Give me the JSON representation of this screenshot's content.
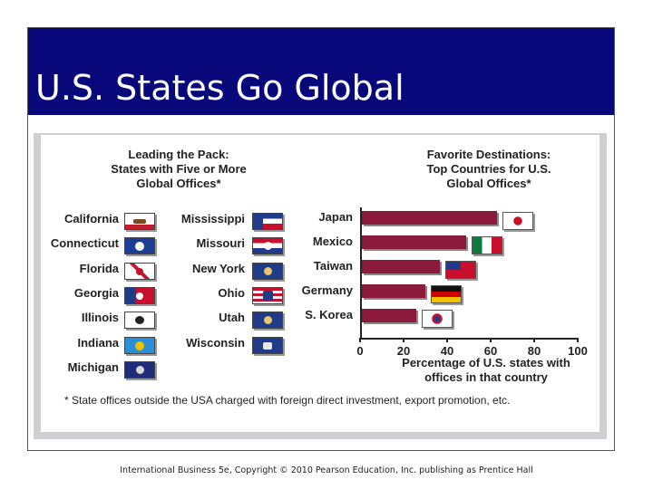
{
  "slide": {
    "title": "U.S. States Go Global",
    "copyright": "International Business 5e, Copyright © 2010 Pearson Education, Inc. publishing as Prentice Hall"
  },
  "left_panel": {
    "heading_lines": [
      "Leading the Pack:",
      "States with Five or More",
      "Global Offices*"
    ],
    "states": [
      {
        "name": "California",
        "flag": "california-flag-icon"
      },
      {
        "name": "Connecticut",
        "flag": "connecticut-flag-icon"
      },
      {
        "name": "Florida",
        "flag": "florida-flag-icon"
      },
      {
        "name": "Georgia",
        "flag": "georgia-flag-icon"
      },
      {
        "name": "Illinois",
        "flag": "illinois-flag-icon"
      },
      {
        "name": "Indiana",
        "flag": "indiana-flag-icon"
      },
      {
        "name": "Michigan",
        "flag": "michigan-flag-icon"
      },
      {
        "name": "Mississippi",
        "flag": "mississippi-flag-icon"
      },
      {
        "name": "Missouri",
        "flag": "missouri-flag-icon"
      },
      {
        "name": "New York",
        "flag": "new-york-flag-icon"
      },
      {
        "name": "Ohio",
        "flag": "ohio-flag-icon"
      },
      {
        "name": "Utah",
        "flag": "utah-flag-icon"
      },
      {
        "name": "Wisconsin",
        "flag": "wisconsin-flag-icon"
      }
    ]
  },
  "footnote": "* State offices outside the USA charged with foreign direct investment, export promotion, etc.",
  "colors": {
    "bar": "#8c1a3c",
    "title_band": "#08087a"
  },
  "chart_data": {
    "type": "bar",
    "orientation": "horizontal",
    "title_lines": [
      "Favorite Destinations:",
      "Top Countries for U.S.",
      "Global Offices*"
    ],
    "categories": [
      "Japan",
      "Mexico",
      "Taiwan",
      "Germany",
      "S. Korea"
    ],
    "values": [
      62,
      48,
      36,
      29,
      25
    ],
    "flags": [
      "japan-flag-icon",
      "mexico-flag-icon",
      "taiwan-flag-icon",
      "germany-flag-icon",
      "south-korea-flag-icon"
    ],
    "xlim": [
      0,
      100
    ],
    "xticks": [
      0,
      20,
      40,
      60,
      80,
      100
    ],
    "xlabel_lines": [
      "Percentage of U.S. states with",
      "offices in that country"
    ],
    "ylabel": "",
    "grid": false
  }
}
